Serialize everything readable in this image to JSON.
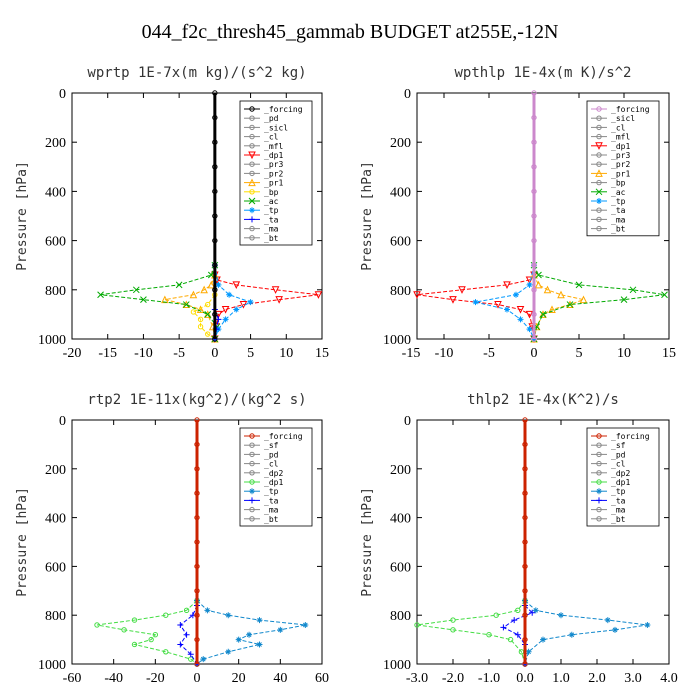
{
  "figure_title": "044_f2c_thresh45_gammab  BUDGET at255E,-12N",
  "chart_data": [
    {
      "type": "line",
      "title": "wprtp  1E-7x(m kg)/(s^2 kg)",
      "xlabel": "",
      "ylabel": "Pressure [hPa]",
      "xlim": [
        -20,
        15
      ],
      "ylim": [
        1000,
        0
      ],
      "xticks": [
        "-20",
        "-15",
        "-10",
        "-5",
        "0",
        "5",
        "10",
        "15"
      ],
      "yticks": [
        "0",
        "200",
        "400",
        "600",
        "800",
        "1000"
      ],
      "legend": [
        "_forcing",
        "_pd",
        "_sicl",
        "_cl",
        "_mfl",
        "_dp1",
        "_pr3",
        "_pr2",
        "_pr1",
        "_bp",
        "_ac",
        "_tp",
        "_ta",
        "_ma",
        "_bt"
      ],
      "legend_position": "top-right",
      "series": [
        {
          "name": "_dp1",
          "color": "#ff0000",
          "marker": "triangle-down",
          "y": [
            740,
            760,
            780,
            800,
            820,
            840,
            860,
            880,
            900,
            950,
            1000
          ],
          "x": [
            0,
            0.3,
            3,
            8.5,
            14.5,
            9,
            4,
            1.5,
            0.5,
            0.2,
            0
          ]
        },
        {
          "name": "_pr1",
          "color": "#ffaa00",
          "marker": "triangle-up",
          "y": [
            740,
            780,
            800,
            820,
            840,
            860,
            880,
            900,
            950,
            1000
          ],
          "x": [
            0,
            -0.5,
            -1.5,
            -3,
            -7,
            -4,
            -2,
            -1,
            -0.3,
            0
          ]
        },
        {
          "name": "_bp",
          "color": "#ffdd00",
          "marker": "circle",
          "y": [
            820,
            860,
            890,
            920,
            950,
            980,
            1000
          ],
          "x": [
            0,
            -1,
            -3,
            -2,
            -2,
            -1,
            0
          ]
        },
        {
          "name": "_ac",
          "color": "#00aa00",
          "marker": "x",
          "y": [
            700,
            740,
            780,
            800,
            820,
            840,
            860,
            900,
            950,
            1000
          ],
          "x": [
            0,
            -0.5,
            -5,
            -11,
            -16,
            -10,
            -4,
            -1,
            0.3,
            0
          ]
        },
        {
          "name": "_tp",
          "color": "#0099ff",
          "marker": "asterisk",
          "y": [
            700,
            780,
            820,
            850,
            880,
            920,
            960,
            1000
          ],
          "x": [
            0,
            0.5,
            2,
            5,
            3,
            1.5,
            0.5,
            0
          ]
        },
        {
          "name": "_ta",
          "color": "#0000ff",
          "marker": "plus",
          "y": [
            880,
            920,
            960,
            1000
          ],
          "x": [
            0,
            0.5,
            0.2,
            0
          ]
        },
        {
          "name": "_forcing",
          "color": "#000000",
          "marker": "circle",
          "y": [
            0,
            100,
            200,
            300,
            400,
            500,
            600,
            700,
            800,
            900,
            1000
          ],
          "x": [
            0,
            0,
            0,
            0,
            0,
            0,
            0,
            0,
            0,
            0,
            0
          ]
        }
      ]
    },
    {
      "type": "line",
      "title": "wpthlp  1E-4x(m K)/s^2",
      "xlabel": "",
      "ylabel": "Pressure [hPa]",
      "xlim": [
        -13,
        15
      ],
      "ylim": [
        1000,
        0
      ],
      "xticks": [
        "-15",
        "-10",
        "-5",
        "0",
        "5",
        "10",
        "15"
      ],
      "yticks": [
        "0",
        "200",
        "400",
        "600",
        "800",
        "1000"
      ],
      "legend": [
        "_forcing",
        "_sicl",
        "_cl",
        "_mfl",
        "_dp1",
        "_pr3",
        "_pr2",
        "_pr1",
        "_bp",
        "_ac",
        "_tp",
        "_ta",
        "_ma",
        "_bt"
      ],
      "legend_position": "top-right",
      "series": [
        {
          "name": "_dp1",
          "color": "#ff0000",
          "marker": "triangle-down",
          "y": [
            740,
            760,
            780,
            800,
            820,
            840,
            860,
            880,
            900,
            950,
            1000
          ],
          "x": [
            0,
            -0.5,
            -3,
            -8,
            -13,
            -9,
            -4,
            -1.5,
            -0.5,
            -0.2,
            0
          ]
        },
        {
          "name": "_pr1",
          "color": "#ffaa00",
          "marker": "triangle-up",
          "y": [
            740,
            780,
            800,
            820,
            840,
            860,
            880,
            900,
            950,
            1000
          ],
          "x": [
            0,
            0.5,
            1.5,
            3,
            5.5,
            4,
            2,
            1,
            0.3,
            0
          ]
        },
        {
          "name": "_ac",
          "color": "#00aa00",
          "marker": "x",
          "y": [
            700,
            740,
            780,
            800,
            820,
            840,
            860,
            900,
            950,
            1000
          ],
          "x": [
            0,
            0.5,
            5,
            11,
            14.5,
            10,
            4,
            1,
            0.3,
            0
          ]
        },
        {
          "name": "_tp",
          "color": "#0099ff",
          "marker": "asterisk",
          "y": [
            700,
            780,
            820,
            850,
            880,
            920,
            960,
            1000
          ],
          "x": [
            0,
            -0.5,
            -2,
            -6.5,
            -3,
            -1.5,
            -0.5,
            0
          ]
        },
        {
          "name": "_forcing",
          "color": "#cc88cc",
          "marker": "circle",
          "y": [
            0,
            100,
            200,
            300,
            400,
            500,
            600,
            700,
            800,
            900,
            1000
          ],
          "x": [
            0,
            0,
            0,
            0,
            0,
            0,
            0,
            0,
            0,
            0,
            0
          ]
        }
      ]
    },
    {
      "type": "line",
      "title": "rtp2  1E-11x(kg^2)/(kg^2 s)",
      "xlabel": "",
      "ylabel": "Pressure [hPa]",
      "xlim": [
        -60,
        60
      ],
      "ylim": [
        1000,
        0
      ],
      "xticks": [
        "-60",
        "-40",
        "-20",
        "0",
        "20",
        "40",
        "60"
      ],
      "yticks": [
        "0",
        "200",
        "400",
        "600",
        "800",
        "1000"
      ],
      "legend": [
        "_forcing",
        "_sf",
        "_pd",
        "_cl",
        "_dp2",
        "_dp1",
        "_tp",
        "_ta",
        "_ma",
        "_bt"
      ],
      "legend_position": "top-right",
      "series": [
        {
          "name": "_dp1",
          "color": "#44dd44",
          "marker": "circle",
          "y": [
            740,
            780,
            800,
            820,
            840,
            860,
            880,
            900,
            920,
            950,
            980,
            1000
          ],
          "x": [
            0,
            -5,
            -15,
            -30,
            -48,
            -35,
            -20,
            -22,
            -30,
            -15,
            -3,
            0
          ]
        },
        {
          "name": "_tp",
          "color": "#1188cc",
          "marker": "asterisk",
          "y": [
            740,
            780,
            800,
            820,
            840,
            860,
            880,
            900,
            920,
            950,
            980,
            1000
          ],
          "x": [
            0,
            5,
            15,
            30,
            52,
            40,
            25,
            20,
            30,
            15,
            3,
            0
          ]
        },
        {
          "name": "_ta",
          "color": "#0000ff",
          "marker": "plus",
          "y": [
            760,
            800,
            840,
            880,
            920,
            960,
            1000
          ],
          "x": [
            0,
            -2,
            -8,
            -5,
            -8,
            -3,
            0
          ]
        },
        {
          "name": "_forcing",
          "color": "#cc2200",
          "marker": "circle",
          "y": [
            0,
            100,
            200,
            300,
            400,
            500,
            600,
            700,
            800,
            900,
            1000
          ],
          "x": [
            0,
            0,
            0,
            0,
            0,
            0,
            0,
            0,
            0,
            0,
            0
          ]
        }
      ]
    },
    {
      "type": "line",
      "title": "thlp2  1E-4x(K^2)/s",
      "xlabel": "",
      "ylabel": "Pressure [hPa]",
      "xlim": [
        -3,
        4
      ],
      "ylim": [
        1000,
        0
      ],
      "xticks": [
        "-3.0",
        "-2.0",
        "-1.0",
        "0.0",
        "1.0",
        "2.0",
        "3.0",
        "4.0"
      ],
      "yticks": [
        "0",
        "200",
        "400",
        "600",
        "800",
        "1000"
      ],
      "legend": [
        "_forcing",
        "_sf",
        "_pd",
        "_cl",
        "_dp2",
        "_dp1",
        "_tp",
        "_ta",
        "_ma",
        "_bt"
      ],
      "legend_position": "top-right",
      "series": [
        {
          "name": "_dp1",
          "color": "#44dd44",
          "marker": "circle",
          "y": [
            740,
            780,
            800,
            820,
            840,
            860,
            880,
            900,
            950,
            1000
          ],
          "x": [
            0,
            -0.2,
            -0.8,
            -2,
            -3,
            -2,
            -1,
            -0.4,
            -0.1,
            0
          ]
        },
        {
          "name": "_tp",
          "color": "#1188cc",
          "marker": "asterisk",
          "y": [
            740,
            780,
            800,
            820,
            840,
            860,
            880,
            900,
            950,
            1000
          ],
          "x": [
            0,
            0.3,
            1,
            2.3,
            3.4,
            2.5,
            1.3,
            0.5,
            0.1,
            0
          ]
        },
        {
          "name": "_ta",
          "color": "#0000ff",
          "marker": "plus",
          "y": [
            760,
            790,
            820,
            850,
            880,
            920,
            1000
          ],
          "x": [
            0,
            0.2,
            -0.3,
            -0.6,
            -0.2,
            0,
            0
          ]
        },
        {
          "name": "_forcing",
          "color": "#cc2200",
          "marker": "circle",
          "y": [
            0,
            100,
            200,
            300,
            400,
            500,
            600,
            700,
            800,
            900,
            1000
          ],
          "x": [
            0,
            0,
            0,
            0,
            0,
            0,
            0,
            0,
            0,
            0,
            0
          ]
        }
      ]
    }
  ]
}
